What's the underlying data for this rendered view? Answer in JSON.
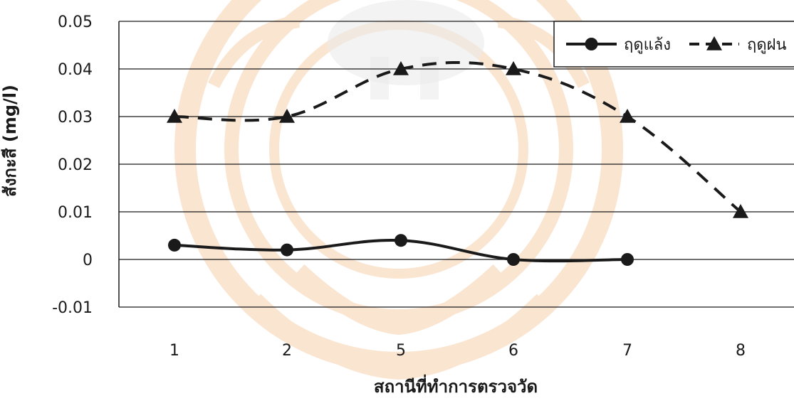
{
  "chart_data": {
    "type": "line",
    "title": "",
    "xlabel": "สถานีที่ทำการตรวจวัด",
    "ylabel": "สังกะสี (mg/l)",
    "categories": [
      "1",
      "2",
      "5",
      "6",
      "7",
      "8"
    ],
    "ylim": [
      -0.01,
      0.05
    ],
    "yticks": [
      0.05,
      0.04,
      0.03,
      0.02,
      0.01,
      0,
      -0.01
    ],
    "ytick_labels": [
      "0.05",
      "0.04",
      "0.03",
      "0.02",
      "0.01",
      "0",
      "-0.01"
    ],
    "grid": true,
    "legend_position": "top-right",
    "series": [
      {
        "name": "ฤดูแล้ง",
        "values": [
          0.003,
          0.002,
          0.004,
          0,
          0,
          null
        ],
        "marker": "circle",
        "line_style": "solid",
        "color": "#1a1a1a"
      },
      {
        "name": "ฤดูฝน",
        "values": [
          0.03,
          0.03,
          0.04,
          0.04,
          0.03,
          0.01
        ],
        "marker": "triangle",
        "line_style": "dashed",
        "color": "#1a1a1a"
      }
    ]
  },
  "colors": {
    "watermark_orange": "#f0a35c",
    "watermark_grey": "#b7b7b7",
    "line": "#1a1a1a"
  }
}
